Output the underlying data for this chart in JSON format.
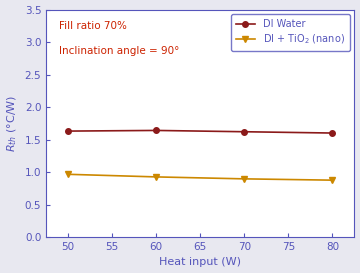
{
  "title": "",
  "annotation_line1": "Fill ratio 70%",
  "annotation_line2": "Inclination angle = 90°",
  "xlabel": "Heat input (W)",
  "ylabel": "$R_{th}$ (°C/W)",
  "xlim": [
    47.5,
    82.5
  ],
  "ylim": [
    0.0,
    3.5
  ],
  "xticks": [
    50,
    55,
    60,
    65,
    70,
    75,
    80
  ],
  "yticks": [
    0.0,
    0.5,
    1.0,
    1.5,
    2.0,
    2.5,
    3.0,
    3.5
  ],
  "series": [
    {
      "label": "DI Water",
      "x": [
        50,
        60,
        70,
        80
      ],
      "y": [
        1.63,
        1.64,
        1.62,
        1.6
      ],
      "color": "#8B1A1A",
      "marker": "o",
      "markersize": 4
    },
    {
      "label": "DI + TiO$_2$ (nano)",
      "x": [
        50,
        60,
        70,
        80
      ],
      "y": [
        0.965,
        0.925,
        0.895,
        0.875
      ],
      "color": "#CC8800",
      "marker": "v",
      "markersize": 4
    }
  ],
  "annotation_color": "#CC2200",
  "axis_color": "#5555BB",
  "tick_color": "#5555BB",
  "label_color": "#5555BB",
  "background_color": "#FFFFFF",
  "fig_background": "#E8E8F0",
  "legend_fontsize": 7,
  "axis_fontsize": 8,
  "tick_fontsize": 7.5,
  "annotation_fontsize": 7.5
}
